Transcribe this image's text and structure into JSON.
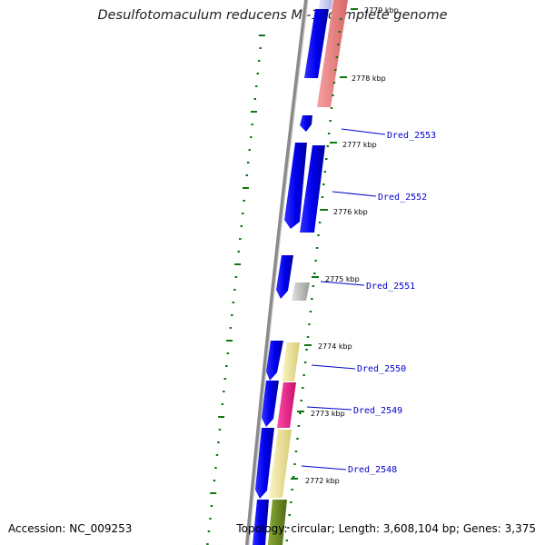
{
  "title": "Desulfotomaculum reducens MI-1, complete genome",
  "accession": "Accession: NC_009253",
  "summary": "Topology: circular; Length: 3,608,104 bp; Genes: 3,375",
  "ticks": [
    "2779 kbp",
    "2778 kbp",
    "2777 kbp",
    "2776 kbp",
    "2775 kbp",
    "2774 kbp",
    "2773 kbp",
    "2772 kbp"
  ],
  "genes": [
    {
      "name": "Dred_2553"
    },
    {
      "name": "Dred_2552"
    },
    {
      "name": "Dred_2551"
    },
    {
      "name": "Dred_2550"
    },
    {
      "name": "Dred_2549"
    },
    {
      "name": "Dred_2548"
    }
  ],
  "colors": {
    "backbone": "#8a8a8a",
    "cds": "#0a0af0",
    "tick": "#117711",
    "label": "#0000cc",
    "salmon": "#f08a8a",
    "gray": "#b8b8b8",
    "yellow": "#efe69a",
    "magenta": "#ee1a8a",
    "olive": "#6a8a20",
    "lavender": "#c8c8f0"
  }
}
